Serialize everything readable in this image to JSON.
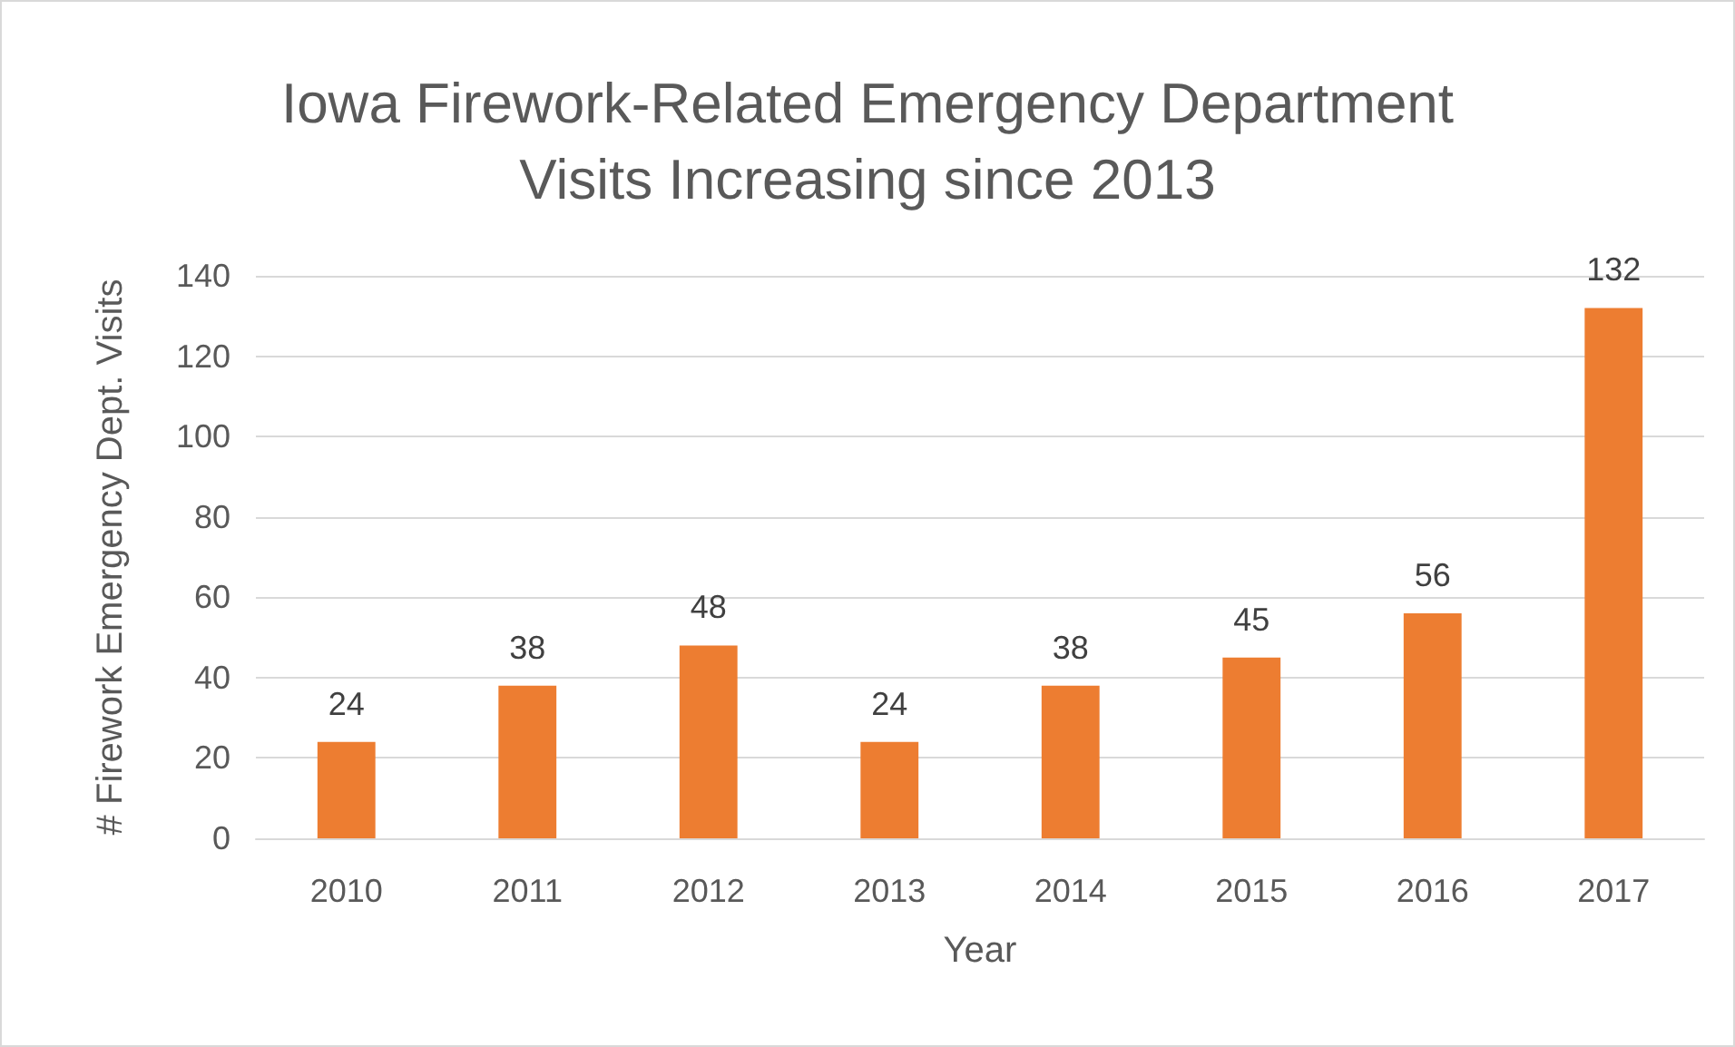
{
  "chart_data": {
    "type": "bar",
    "title": "Iowa Firework-Related Emergency Department\nVisits Increasing since 2013",
    "xlabel": "Year",
    "ylabel": "# Firework Emergency Dept. Visits",
    "categories": [
      "2010",
      "2011",
      "2012",
      "2013",
      "2014",
      "2015",
      "2016",
      "2017"
    ],
    "values": [
      24,
      38,
      48,
      24,
      38,
      45,
      56,
      132
    ],
    "color": "#ed7d31",
    "ylim": [
      0,
      140
    ],
    "yticks": [
      0,
      20,
      40,
      60,
      80,
      100,
      120,
      140
    ],
    "grid": "y",
    "data_labels": true
  }
}
